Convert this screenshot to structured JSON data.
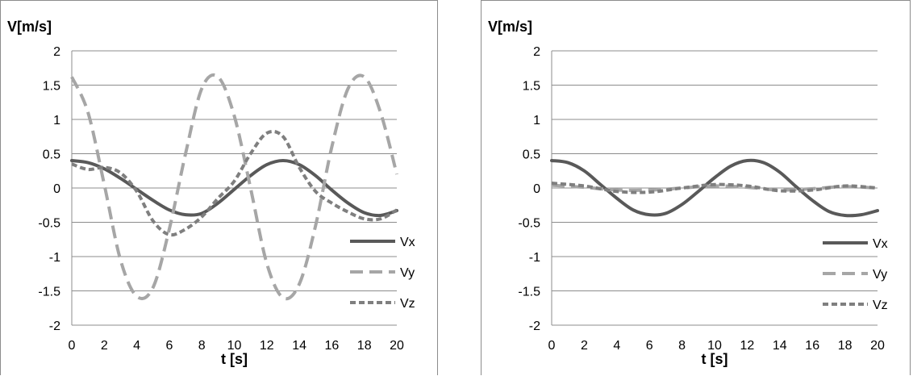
{
  "chart_data": [
    {
      "type": "line",
      "ylabel": "V[m/s]",
      "xlabel": "t [s]",
      "xlim": [
        0,
        20
      ],
      "ylim": [
        -2,
        2
      ],
      "xticks": [
        "0",
        "2",
        "4",
        "6",
        "8",
        "10",
        "12",
        "14",
        "16",
        "18",
        "20"
      ],
      "yticks": [
        "2",
        "1.5",
        "1",
        "0.5",
        "0",
        "-0.5",
        "-1",
        "-1.5",
        "-2"
      ],
      "grid": "horizontal",
      "legend_position": "right",
      "series": [
        {
          "name": "Vx",
          "style": "solid",
          "color": "#595959",
          "x": [
            0,
            1,
            2,
            3,
            4,
            5,
            6,
            7,
            8,
            9,
            10,
            11,
            12,
            13,
            14,
            15,
            16,
            17,
            18,
            19,
            20
          ],
          "y": [
            0.4,
            0.37,
            0.28,
            0.14,
            -0.02,
            -0.18,
            -0.32,
            -0.39,
            -0.37,
            -0.22,
            -0.02,
            0.18,
            0.34,
            0.4,
            0.34,
            0.18,
            -0.03,
            -0.22,
            -0.36,
            -0.4,
            -0.33
          ]
        },
        {
          "name": "Vy",
          "style": "dashed",
          "color": "#a6a6a6",
          "x": [
            0,
            1,
            2,
            3,
            4,
            5,
            6,
            7,
            8,
            9,
            10,
            11,
            12,
            13,
            14,
            15,
            16,
            17,
            18,
            19,
            20
          ],
          "y": [
            1.62,
            1.1,
            0.05,
            -1.05,
            -1.58,
            -1.45,
            -0.6,
            0.5,
            1.45,
            1.62,
            1.05,
            0.0,
            -1.1,
            -1.6,
            -1.4,
            -0.55,
            0.6,
            1.45,
            1.62,
            1.1,
            0.2
          ]
        },
        {
          "name": "Vz",
          "style": "dotted",
          "color": "#7f7f7f",
          "x": [
            0,
            1,
            2,
            3,
            4,
            5,
            6,
            7,
            8,
            9,
            10,
            11,
            12,
            13,
            14,
            15,
            16,
            17,
            18,
            19,
            20
          ],
          "y": [
            0.35,
            0.27,
            0.3,
            0.22,
            -0.05,
            -0.48,
            -0.68,
            -0.6,
            -0.42,
            -0.15,
            0.1,
            0.5,
            0.8,
            0.75,
            0.3,
            -0.05,
            -0.22,
            -0.35,
            -0.45,
            -0.45,
            -0.32
          ]
        }
      ]
    },
    {
      "type": "line",
      "ylabel": "V[m/s]",
      "xlabel": "t [s]",
      "xlim": [
        0,
        20
      ],
      "ylim": [
        -2,
        2
      ],
      "xticks": [
        "0",
        "2",
        "4",
        "6",
        "8",
        "10",
        "12",
        "14",
        "16",
        "18",
        "20"
      ],
      "yticks": [
        "2",
        "1.5",
        "1",
        "0.5",
        "0",
        "-0.5",
        "-1",
        "-1.5",
        "-2"
      ],
      "grid": "horizontal",
      "legend_position": "right",
      "series": [
        {
          "name": "Vx",
          "style": "solid",
          "color": "#595959",
          "x": [
            0,
            1,
            2,
            3,
            4,
            5,
            6,
            7,
            8,
            9,
            10,
            11,
            12,
            13,
            14,
            15,
            16,
            17,
            18,
            19,
            20
          ],
          "y": [
            0.4,
            0.37,
            0.25,
            0.05,
            -0.15,
            -0.32,
            -0.39,
            -0.37,
            -0.24,
            -0.05,
            0.15,
            0.32,
            0.4,
            0.37,
            0.23,
            0.02,
            -0.18,
            -0.34,
            -0.4,
            -0.39,
            -0.33
          ]
        },
        {
          "name": "Vy",
          "style": "dashed",
          "color": "#a6a6a6",
          "x": [
            0,
            2,
            4,
            6,
            8,
            10,
            12,
            14,
            16,
            18,
            20
          ],
          "y": [
            0.04,
            0.01,
            -0.03,
            -0.03,
            0.0,
            0.03,
            0.01,
            -0.03,
            -0.01,
            0.02,
            0.0
          ]
        },
        {
          "name": "Vz",
          "style": "dotted",
          "color": "#7f7f7f",
          "x": [
            0,
            2,
            4,
            6,
            8,
            10,
            12,
            14,
            16,
            18,
            20
          ],
          "y": [
            0.07,
            0.03,
            -0.05,
            -0.06,
            0.0,
            0.05,
            0.03,
            -0.04,
            -0.03,
            0.03,
            0.0
          ]
        }
      ]
    }
  ]
}
